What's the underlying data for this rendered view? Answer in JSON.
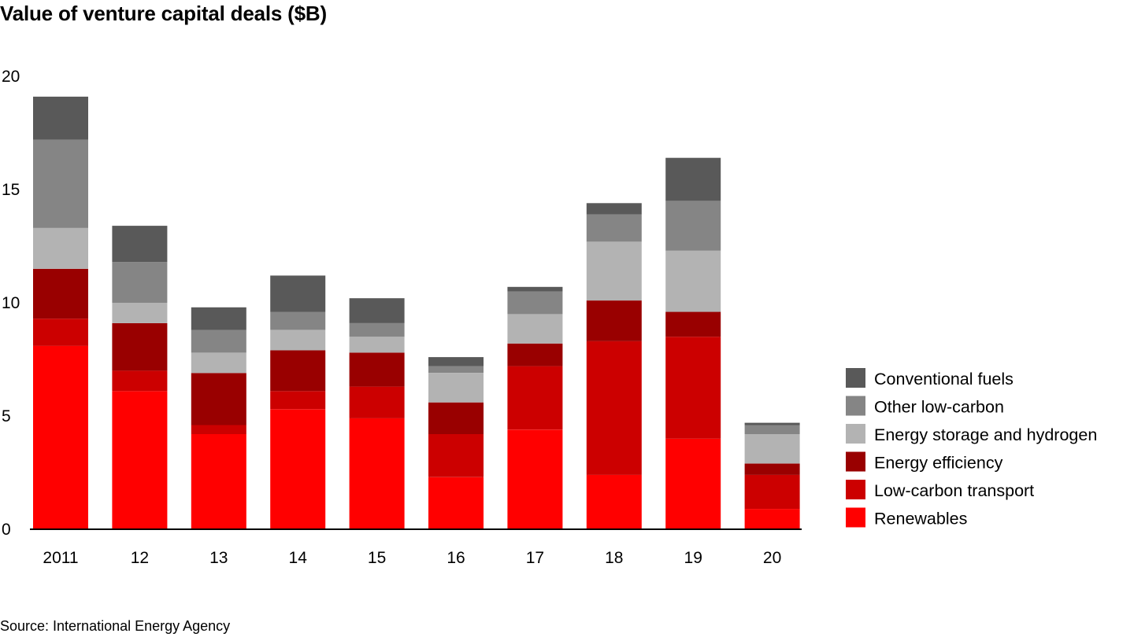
{
  "chart_data": {
    "type": "bar",
    "stacked": true,
    "title": "Value of venture capital deals ($B)",
    "xlabel": "",
    "ylabel": "",
    "ylim": [
      0,
      20
    ],
    "yticks": [
      "0",
      "5",
      "10",
      "15",
      "20"
    ],
    "categories": [
      "2011",
      "12",
      "13",
      "14",
      "15",
      "16",
      "17",
      "18",
      "19",
      "20"
    ],
    "series": [
      {
        "name": "Renewables",
        "color": "#ff0000",
        "values": [
          8.1,
          6.1,
          4.2,
          5.3,
          4.9,
          2.3,
          4.4,
          2.4,
          4.0,
          0.9
        ]
      },
      {
        "name": "Low-carbon transport",
        "color": "#cc0000",
        "values": [
          1.2,
          0.9,
          0.4,
          0.8,
          1.4,
          1.9,
          2.8,
          5.9,
          4.5,
          1.5
        ]
      },
      {
        "name": "Energy efficiency",
        "color": "#990000",
        "values": [
          2.2,
          2.1,
          2.3,
          1.8,
          1.5,
          1.4,
          1.0,
          1.8,
          1.1,
          0.5
        ]
      },
      {
        "name": "Energy storage and hydrogen",
        "color": "#b3b3b3",
        "values": [
          1.8,
          0.9,
          0.9,
          0.9,
          0.7,
          1.3,
          1.3,
          2.6,
          2.7,
          1.3
        ]
      },
      {
        "name": "Other low-carbon",
        "color": "#858585",
        "values": [
          3.9,
          1.8,
          1.0,
          0.8,
          0.6,
          0.3,
          1.0,
          1.2,
          2.2,
          0.4
        ]
      },
      {
        "name": "Conventional fuels",
        "color": "#595959",
        "values": [
          1.9,
          1.6,
          1.0,
          1.6,
          1.1,
          0.4,
          0.2,
          0.5,
          1.9,
          0.1
        ]
      }
    ],
    "legend_position": "right",
    "grid": false
  },
  "source": "Source: International Energy Agency"
}
